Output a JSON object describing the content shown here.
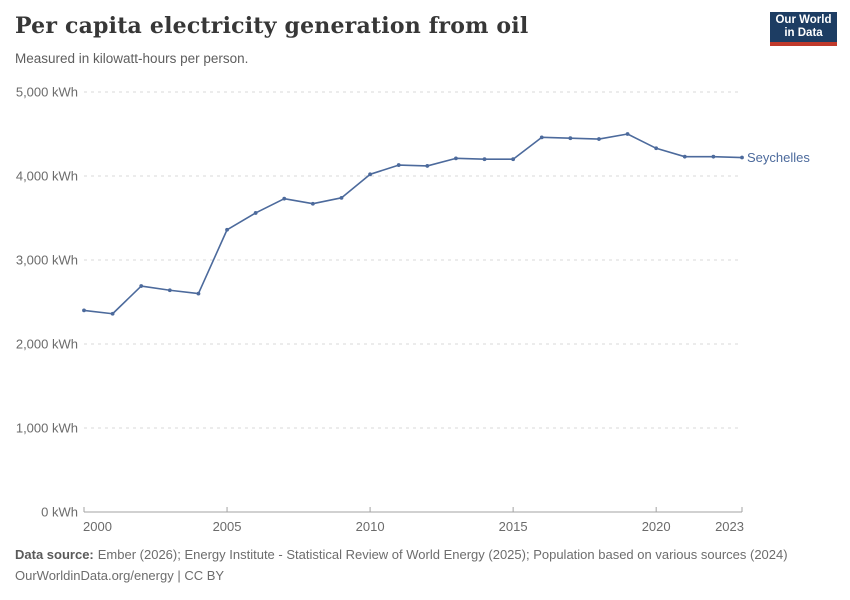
{
  "header": {
    "title": "Per capita electricity generation from oil",
    "subtitle": "Measured in kilowatt-hours per person.",
    "logo": {
      "line1": "Our World",
      "line2": "in Data"
    }
  },
  "chart_data": {
    "type": "line",
    "title": "Per capita electricity generation from oil",
    "subtitle": "Measured in kilowatt-hours per person.",
    "unit": "kWh",
    "xlabel": "",
    "ylabel": "kWh",
    "xlim": [
      2000,
      2023
    ],
    "ylim": [
      0,
      5000
    ],
    "grid": "horizontal-dashed",
    "legend_position": "end-of-line",
    "x": [
      2000,
      2001,
      2002,
      2003,
      2004,
      2005,
      2006,
      2007,
      2008,
      2009,
      2010,
      2011,
      2012,
      2013,
      2014,
      2015,
      2016,
      2017,
      2018,
      2019,
      2020,
      2021,
      2022,
      2023
    ],
    "series": [
      {
        "name": "Seychelles",
        "color": "#4C6A9C",
        "values": [
          2400,
          2360,
          2690,
          2640,
          2600,
          3360,
          3560,
          3730,
          3670,
          3740,
          4020,
          4130,
          4120,
          4210,
          4200,
          4200,
          4460,
          4450,
          4440,
          4500,
          4330,
          4230,
          4230,
          4220
        ]
      }
    ],
    "y_ticks": [
      {
        "value": 0,
        "label": "0 kWh"
      },
      {
        "value": 1000,
        "label": "1,000 kWh"
      },
      {
        "value": 2000,
        "label": "2,000 kWh"
      },
      {
        "value": 3000,
        "label": "3,000 kWh"
      },
      {
        "value": 4000,
        "label": "4,000 kWh"
      },
      {
        "value": 5000,
        "label": "5,000 kWh"
      }
    ],
    "x_ticks": [
      {
        "year": 2000,
        "label": "2000"
      },
      {
        "year": 2005,
        "label": "2005"
      },
      {
        "year": 2010,
        "label": "2010"
      },
      {
        "year": 2015,
        "label": "2015"
      },
      {
        "year": 2020,
        "label": "2020"
      },
      {
        "year": 2023,
        "label": "2023"
      }
    ]
  },
  "footer": {
    "source_label": "Data source:",
    "source_text": "Ember (2026); Energy Institute - Statistical Review of World Energy (2025); Population based on various sources (2024)",
    "credit": "OurWorldinData.org/energy | CC BY"
  },
  "colors": {
    "line": "#4C6A9C",
    "logo_background": "#1d3d63",
    "logo_accent": "#c0392b",
    "grid": "#d8d8d8",
    "axis": "#a3a3a3",
    "muted_text": "#6b6b6b"
  }
}
